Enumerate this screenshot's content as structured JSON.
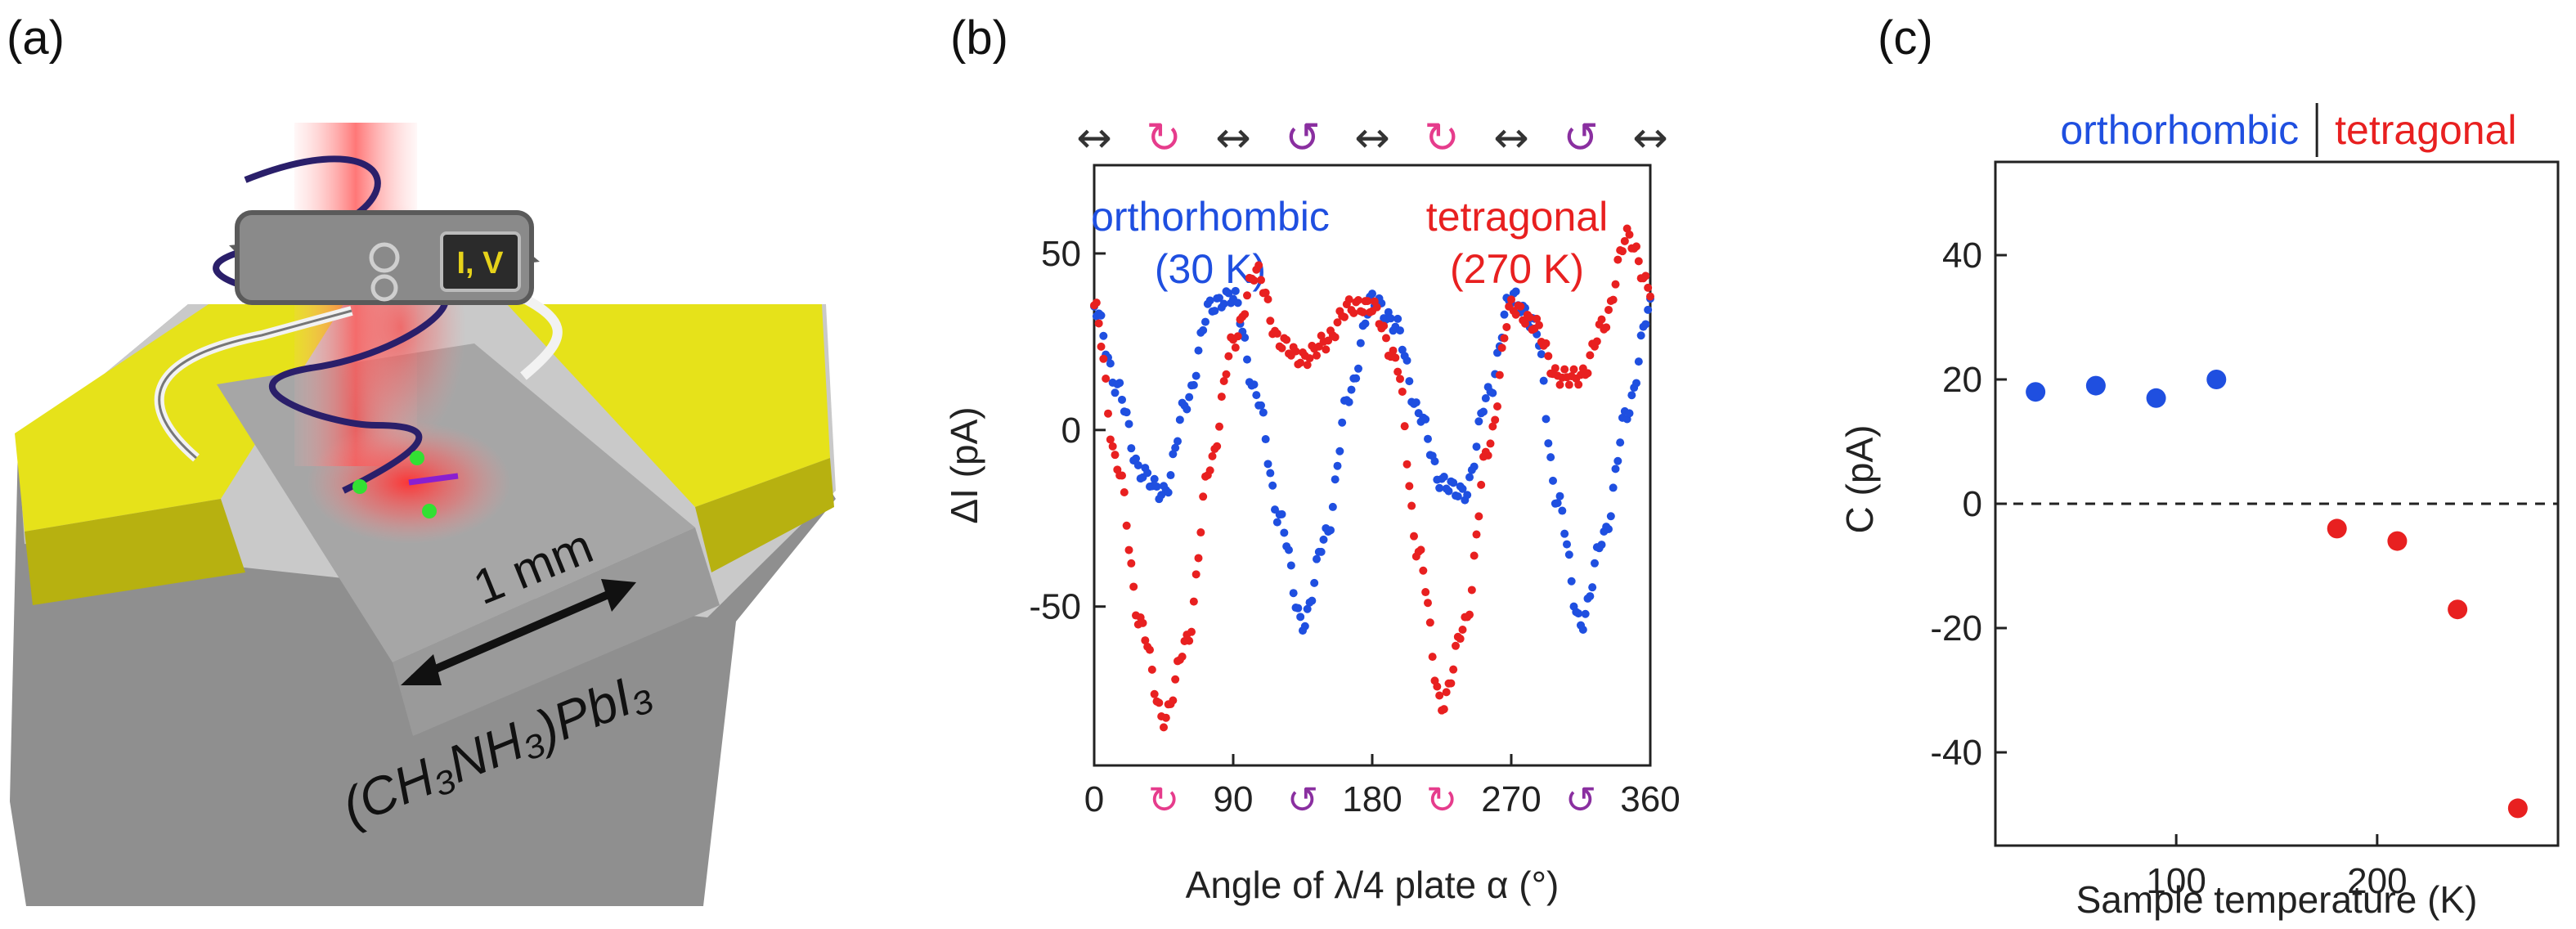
{
  "panels": {
    "a": {
      "label": "(a)",
      "meter_label": "I, V",
      "scale_label": "1 mm",
      "material_label": "(CH₃NH₃)PbI₃"
    },
    "b": {
      "label": "(b)"
    },
    "c": {
      "label": "(c)"
    }
  },
  "chart_data": [
    {
      "type": "scatter",
      "title": "",
      "xlabel": "Angle of λ/4 plate α (°)",
      "ylabel": "ΔI (pA)",
      "xlim": [
        0,
        360
      ],
      "ylim": [
        -95,
        75
      ],
      "x_ticks": [
        "0",
        "90",
        "180",
        "270",
        "360"
      ],
      "y_ticks": [
        "50",
        "0",
        "-50"
      ],
      "y_tick_values": [
        50,
        0,
        -50
      ],
      "x_tick_values": [
        0,
        90,
        180,
        270,
        360
      ],
      "polarization_markers": [
        "↔",
        "↻",
        "↔",
        "↺",
        "↔",
        "↻",
        "↔",
        "↺",
        "↔"
      ],
      "series": [
        {
          "name": "orthorhombic",
          "sublabel": "(30 K)",
          "color": "#1f4fe0",
          "x": [
            0,
            15,
            30,
            45,
            60,
            75,
            90,
            105,
            120,
            135,
            150,
            165,
            180,
            195,
            210,
            225,
            240,
            255,
            270,
            285,
            300,
            315,
            330,
            345,
            360
          ],
          "y": [
            35,
            12,
            -12,
            -18,
            8,
            35,
            38,
            10,
            -25,
            -55,
            -30,
            10,
            37,
            30,
            5,
            -15,
            -18,
            10,
            38,
            30,
            -20,
            -55,
            -30,
            5,
            35
          ]
        },
        {
          "name": "tetragonal",
          "sublabel": "(270 K)",
          "color": "#e82020",
          "x": [
            0,
            15,
            30,
            45,
            60,
            75,
            90,
            105,
            120,
            135,
            150,
            165,
            180,
            195,
            210,
            225,
            240,
            255,
            270,
            285,
            300,
            315,
            330,
            345,
            360
          ],
          "y": [
            35,
            -10,
            -55,
            -82,
            -60,
            -10,
            25,
            45,
            25,
            20,
            25,
            35,
            35,
            20,
            -35,
            -78,
            -55,
            -5,
            35,
            30,
            15,
            15,
            30,
            55,
            40
          ]
        }
      ]
    },
    {
      "type": "scatter",
      "title": "",
      "xlabel": "Sample temperature (K)",
      "ylabel": "C (pA)",
      "xlim": [
        10,
        290
      ],
      "ylim": [
        -55,
        55
      ],
      "x_ticks": [
        "100",
        "200"
      ],
      "x_tick_values": [
        100,
        200
      ],
      "y_ticks": [
        "40",
        "20",
        "0",
        "-20",
        "-40"
      ],
      "y_tick_values": [
        40,
        20,
        0,
        -20,
        -40
      ],
      "phase_labels": [
        "orthorhombic",
        "tetragonal"
      ],
      "phase_boundary": 170,
      "series": [
        {
          "name": "orthorhombic",
          "color": "#1f4fe0",
          "x": [
            30,
            60,
            90,
            120
          ],
          "y": [
            18,
            19,
            17,
            20
          ]
        },
        {
          "name": "tetragonal",
          "color": "#e82020",
          "x": [
            180,
            210,
            240,
            270
          ],
          "y": [
            -4,
            -6,
            -17,
            -49
          ]
        }
      ]
    }
  ]
}
